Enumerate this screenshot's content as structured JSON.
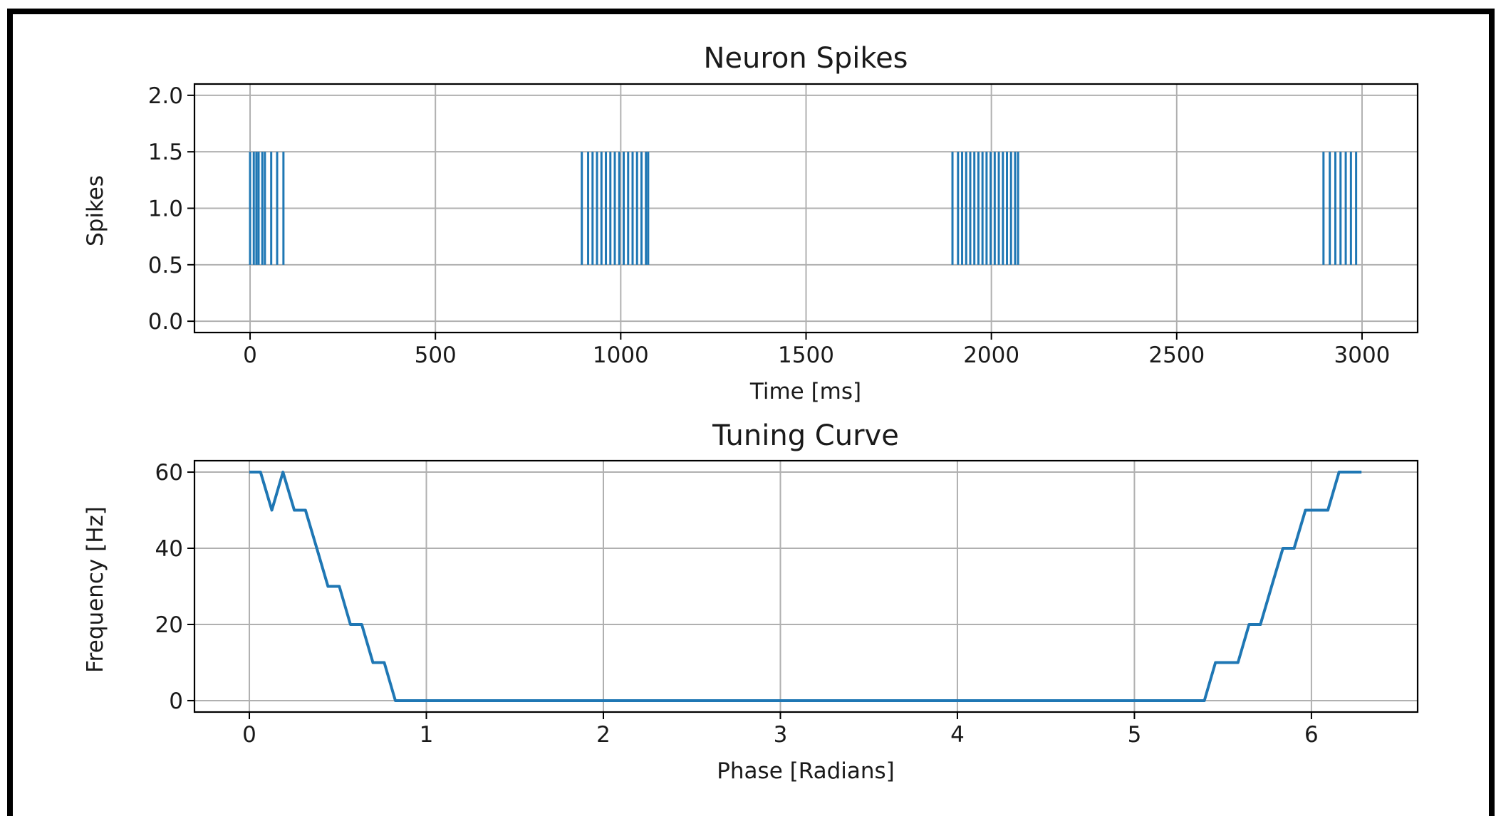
{
  "chart_data": [
    {
      "type": "spike-raster",
      "title": "Neuron Spikes",
      "xlabel": "Time [ms]",
      "ylabel": "Spikes",
      "xlim": [
        -150,
        3150
      ],
      "ylim": [
        -0.1,
        2.1
      ],
      "xticks": [
        0,
        500,
        1000,
        1500,
        2000,
        2500,
        3000
      ],
      "yticks": [
        0.0,
        0.5,
        1.0,
        1.5,
        2.0
      ],
      "ytick_labels": [
        "0.0",
        "0.5",
        "1.0",
        "1.5",
        "2.0"
      ],
      "grid": true,
      "color": "#1f77b4",
      "spike_ymin": 0.5,
      "spike_ymax": 1.5,
      "spike_times": [
        0,
        10,
        17,
        23,
        33,
        40,
        57,
        73,
        90,
        895,
        912,
        924,
        936,
        948,
        960,
        972,
        984,
        996,
        1008,
        1020,
        1032,
        1044,
        1056,
        1068,
        1074,
        1895,
        1910,
        1921,
        1932,
        1943,
        1954,
        1965,
        1976,
        1987,
        1998,
        2009,
        2020,
        2031,
        2042,
        2053,
        2064,
        2072,
        2896,
        2913,
        2928,
        2942,
        2956,
        2970,
        2984
      ]
    },
    {
      "type": "line",
      "title": "Tuning Curve",
      "xlabel": "Phase [Radians]",
      "ylabel": "Frequency [Hz]",
      "xlim": [
        -0.31,
        6.6
      ],
      "ylim": [
        -3,
        63
      ],
      "xticks": [
        0,
        1,
        2,
        3,
        4,
        5,
        6
      ],
      "yticks": [
        0,
        20,
        40,
        60
      ],
      "grid": true,
      "color": "#1f77b4",
      "series": [
        {
          "x": [
            0,
            0.063,
            0.127,
            0.19,
            0.254,
            0.317,
            0.381,
            0.444,
            0.508,
            0.571,
            0.635,
            0.698,
            0.762,
            0.825,
            0.888,
            5.395,
            5.458,
            5.522,
            5.585,
            5.648,
            5.712,
            5.775,
            5.839,
            5.902,
            5.966,
            6.029,
            6.093,
            6.156,
            6.22,
            6.283
          ],
          "y": [
            60,
            60,
            50,
            60,
            50,
            50,
            40,
            30,
            30,
            20,
            20,
            10,
            10,
            0,
            0,
            0,
            10,
            10,
            10,
            20,
            20,
            30,
            40,
            40,
            50,
            50,
            50,
            60,
            60,
            60
          ]
        }
      ]
    }
  ]
}
